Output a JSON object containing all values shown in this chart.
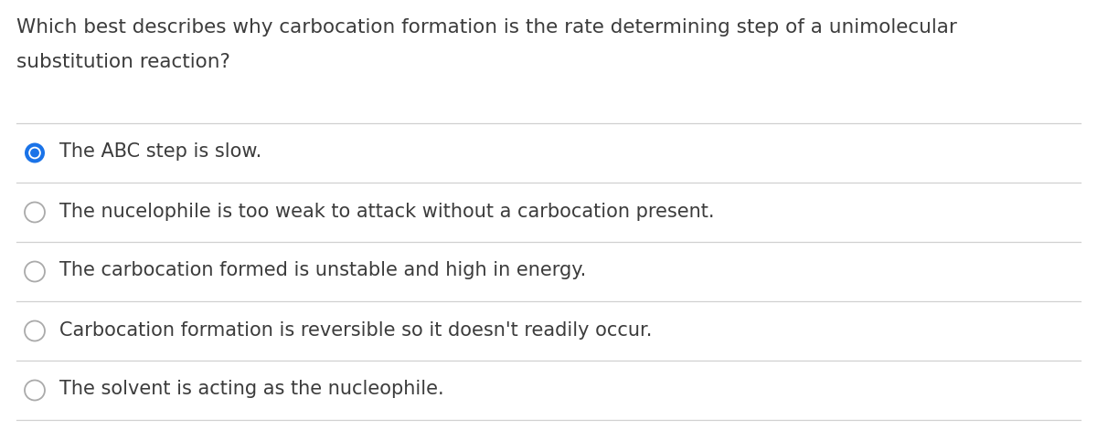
{
  "question_line1": "Which best describes why carbocation formation is the rate determining step of a unimolecular",
  "question_line2": "substitution reaction?",
  "options": [
    "The ABC step is slow.",
    "The nucelophile is too weak to attack without a carbocation present.",
    "The carbocation formed is unstable and high in energy.",
    "Carbocation formation is reversible so it doesn't readily occur.",
    "The solvent is acting as the nucleophile."
  ],
  "selected_index": 0,
  "background_color": "#ffffff",
  "question_color": "#3c3c3c",
  "option_text_color": "#3c3c3c",
  "divider_color": "#d0d0d0",
  "selected_fill_color": "#1a73e8",
  "selected_border_color": "#1a73e8",
  "unselected_border_color": "#aaaaaa",
  "question_fontsize": 15.5,
  "option_fontsize": 15.0,
  "fig_width": 12.0,
  "fig_height": 4.82,
  "dpi": 100
}
